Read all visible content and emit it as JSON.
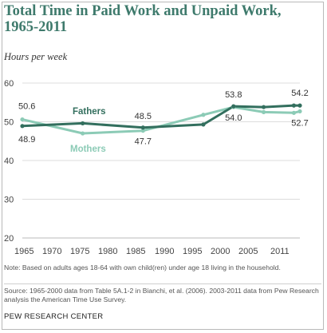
{
  "title": "Total Time in Paid Work and Unpaid Work, 1965-2011",
  "subtitle": "Hours per week",
  "note": "Note: Based on adults ages 18-64 with own child(ren) under age 18 living in the household.",
  "source": "Source: 1965-2000 data from Table 5A.1-2 in Bianchi, et al. (2006). 2003-2011 data from Pew Research analysis the American Time Use Survey.",
  "footer": "PEW RESEARCH CENTER",
  "colors": {
    "fathers": "#336f5e",
    "mothers": "#8ccbb6",
    "grid": "#dcdcdc",
    "title": "#3e7a6c"
  },
  "chart_data": {
    "type": "line",
    "title": "Total Time in Paid Work and Unpaid Work, 1965-2011",
    "ylabel": "Hours per week",
    "ylim": [
      20,
      60
    ],
    "yticks": [
      20,
      30,
      40,
      50,
      60
    ],
    "xlim": [
      1965,
      2011
    ],
    "xtick_labels": [
      "1965",
      "1970",
      "1975",
      "1980",
      "1985",
      "1990",
      "1995",
      "2000",
      "2005",
      "2011"
    ],
    "grid": true,
    "series": [
      {
        "name": "Fathers",
        "x": [
          1965,
          1975,
          1985,
          1995,
          2000,
          2005,
          2010,
          2011
        ],
        "values": [
          48.9,
          49.6,
          48.5,
          49.3,
          54.0,
          53.8,
          54.2,
          54.2
        ]
      },
      {
        "name": "Mothers",
        "x": [
          1965,
          1975,
          1985,
          1995,
          2000,
          2005,
          2010,
          2011
        ],
        "values": [
          50.6,
          47.0,
          47.7,
          51.8,
          53.8,
          52.5,
          52.3,
          52.7
        ]
      }
    ],
    "annotations": [
      {
        "series": "Mothers",
        "x": 1965,
        "text": "50.6"
      },
      {
        "series": "Fathers",
        "x": 1965,
        "text": "48.9"
      },
      {
        "series": "Fathers",
        "x": 1985,
        "text": "48.5"
      },
      {
        "series": "Mothers",
        "x": 1985,
        "text": "47.7"
      },
      {
        "series": "Mothers",
        "x": 2000,
        "text": "53.8"
      },
      {
        "series": "Fathers",
        "x": 2000,
        "text": "54.0"
      },
      {
        "series": "Fathers",
        "x": 2011,
        "text": "54.2"
      },
      {
        "series": "Mothers",
        "x": 2011,
        "text": "52.7"
      }
    ]
  }
}
